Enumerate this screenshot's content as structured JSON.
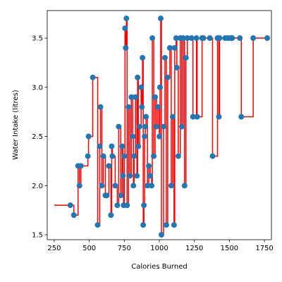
{
  "chart_data": {
    "type": "scatter",
    "title": "",
    "xlabel": "Calories Burned",
    "ylabel": "Water Intake (litres)",
    "xlim": [
      200,
      1800
    ],
    "ylim": [
      1.45,
      3.78
    ],
    "x_ticks": [
      250,
      500,
      750,
      1000,
      1250,
      1500,
      1750
    ],
    "y_ticks": [
      1.5,
      2.0,
      2.5,
      3.0,
      3.5
    ],
    "y_tick_labels": [
      "1.5",
      "2.0",
      "2.5",
      "3.0",
      "3.5"
    ],
    "grid": false,
    "legend": "none",
    "colors": {
      "points": "#1f77b4",
      "step_line": "#ff0000"
    },
    "series": [
      {
        "kind": "scatter",
        "points": [
          [
            365,
            1.8
          ],
          [
            390,
            1.7
          ],
          [
            420,
            2.2
          ],
          [
            430,
            2.0
          ],
          [
            440,
            2.2
          ],
          [
            490,
            2.3
          ],
          [
            495,
            2.5
          ],
          [
            525,
            3.1
          ],
          [
            560,
            1.6
          ],
          [
            575,
            2.4
          ],
          [
            580,
            2.8
          ],
          [
            590,
            2.0
          ],
          [
            600,
            2.3
          ],
          [
            615,
            1.9
          ],
          [
            625,
            1.9
          ],
          [
            640,
            2.2
          ],
          [
            655,
            1.7
          ],
          [
            660,
            2.4
          ],
          [
            665,
            2.3
          ],
          [
            685,
            2.0
          ],
          [
            700,
            1.8
          ],
          [
            710,
            2.6
          ],
          [
            725,
            1.9
          ],
          [
            735,
            2.4
          ],
          [
            740,
            2.1
          ],
          [
            745,
            1.8
          ],
          [
            750,
            2.3
          ],
          [
            755,
            3.6
          ],
          [
            760,
            3.4
          ],
          [
            765,
            3.7
          ],
          [
            770,
            1.8
          ],
          [
            780,
            2.8
          ],
          [
            790,
            2.1
          ],
          [
            800,
            2.9
          ],
          [
            810,
            2.5
          ],
          [
            815,
            2.0
          ],
          [
            820,
            2.3
          ],
          [
            830,
            2.9
          ],
          [
            840,
            2.1
          ],
          [
            845,
            3.1
          ],
          [
            850,
            2.4
          ],
          [
            860,
            2.6
          ],
          [
            870,
            3.0
          ],
          [
            875,
            2.8
          ],
          [
            880,
            3.3
          ],
          [
            885,
            1.6
          ],
          [
            890,
            1.8
          ],
          [
            895,
            2.5
          ],
          [
            900,
            2.6
          ],
          [
            905,
            2.7
          ],
          [
            915,
            2.0
          ],
          [
            925,
            2.2
          ],
          [
            935,
            2.1
          ],
          [
            945,
            2.0
          ],
          [
            950,
            3.5
          ],
          [
            960,
            2.3
          ],
          [
            970,
            2.9
          ],
          [
            980,
            2.6
          ],
          [
            990,
            2.8
          ],
          [
            1000,
            2.5
          ],
          [
            1005,
            3.0
          ],
          [
            1010,
            3.7
          ],
          [
            1015,
            1.5
          ],
          [
            1030,
            2.6
          ],
          [
            1040,
            3.3
          ],
          [
            1050,
            1.6
          ],
          [
            1060,
            3.1
          ],
          [
            1075,
            3.4
          ],
          [
            1085,
            2.0
          ],
          [
            1095,
            2.7
          ],
          [
            1105,
            1.6
          ],
          [
            1110,
            3.4
          ],
          [
            1120,
            3.5
          ],
          [
            1125,
            3.2
          ],
          [
            1135,
            2.3
          ],
          [
            1150,
            3.5
          ],
          [
            1160,
            2.6
          ],
          [
            1170,
            3.5
          ],
          [
            1180,
            2.0
          ],
          [
            1190,
            3.3
          ],
          [
            1200,
            3.5
          ],
          [
            1230,
            3.5
          ],
          [
            1240,
            2.7
          ],
          [
            1265,
            3.5
          ],
          [
            1270,
            2.7
          ],
          [
            1305,
            3.5
          ],
          [
            1315,
            3.5
          ],
          [
            1360,
            3.5
          ],
          [
            1380,
            2.3
          ],
          [
            1415,
            3.5
          ],
          [
            1425,
            2.7
          ],
          [
            1430,
            3.5
          ],
          [
            1470,
            3.5
          ],
          [
            1490,
            3.5
          ],
          [
            1510,
            3.5
          ],
          [
            1520,
            3.5
          ],
          [
            1575,
            3.5
          ],
          [
            1585,
            2.7
          ],
          [
            1670,
            3.5
          ],
          [
            1770,
            3.5
          ]
        ]
      },
      {
        "kind": "step",
        "start": [
          250,
          1.8
        ]
      }
    ]
  }
}
